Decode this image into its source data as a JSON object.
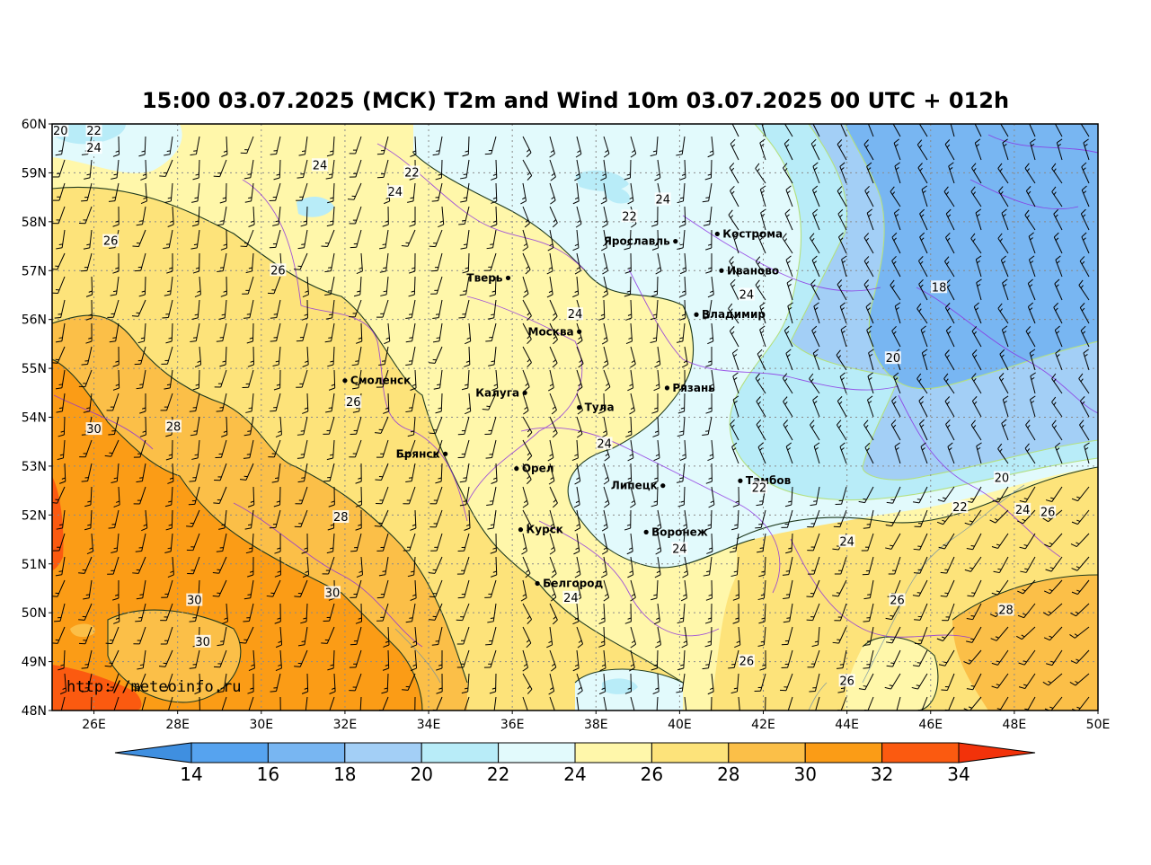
{
  "title": "15:00 03.07.2025 (МСК) T2m and Wind 10m 03.07.2025 00 UTC + 012h",
  "watermark": "http://meteoinfo.ru",
  "lat_labels": [
    "60N",
    "59N",
    "58N",
    "57N",
    "56N",
    "55N",
    "54N",
    "53N",
    "52N",
    "51N",
    "50N",
    "49N",
    "48N"
  ],
  "lon_labels": [
    "26E",
    "28E",
    "30E",
    "32E",
    "34E",
    "36E",
    "38E",
    "40E",
    "42E",
    "44E",
    "46E",
    "48E",
    "50E"
  ],
  "cities": [
    {
      "name": "Ярославль",
      "lon": 39.9,
      "lat": 57.6,
      "side": "left"
    },
    {
      "name": "Кострома",
      "lon": 40.9,
      "lat": 57.75,
      "side": "right"
    },
    {
      "name": "Иваново",
      "lon": 41.0,
      "lat": 57.0,
      "side": "right"
    },
    {
      "name": "Тверь",
      "lon": 35.9,
      "lat": 56.85,
      "side": "left"
    },
    {
      "name": "Владимир",
      "lon": 40.4,
      "lat": 56.1,
      "side": "right"
    },
    {
      "name": "Москва",
      "lon": 37.6,
      "lat": 55.75,
      "side": "left"
    },
    {
      "name": "Смоленск",
      "lon": 32.0,
      "lat": 54.75,
      "side": "right"
    },
    {
      "name": "Калуга",
      "lon": 36.3,
      "lat": 54.5,
      "side": "left"
    },
    {
      "name": "Рязань",
      "lon": 39.7,
      "lat": 54.6,
      "side": "right"
    },
    {
      "name": "Тула",
      "lon": 37.6,
      "lat": 54.2,
      "side": "right"
    },
    {
      "name": "Брянск",
      "lon": 34.4,
      "lat": 53.25,
      "side": "left"
    },
    {
      "name": "Орел",
      "lon": 36.1,
      "lat": 52.95,
      "side": "right"
    },
    {
      "name": "Липецк",
      "lon": 39.6,
      "lat": 52.6,
      "side": "left"
    },
    {
      "name": "Тамбов",
      "lon": 41.45,
      "lat": 52.7,
      "side": "right"
    },
    {
      "name": "Курск",
      "lon": 36.2,
      "lat": 51.7,
      "side": "right"
    },
    {
      "name": "Воронеж",
      "lon": 39.2,
      "lat": 51.65,
      "side": "right"
    },
    {
      "name": "Белгород",
      "lon": 36.6,
      "lat": 50.6,
      "side": "right"
    }
  ],
  "contour_labels": [
    {
      "t": "20",
      "lon": 25.2,
      "lat": 59.85
    },
    {
      "t": "22",
      "lon": 26.0,
      "lat": 59.85
    },
    {
      "t": "24",
      "lon": 26.0,
      "lat": 59.5
    },
    {
      "t": "24",
      "lon": 31.4,
      "lat": 59.15
    },
    {
      "t": "22",
      "lon": 33.6,
      "lat": 59.0
    },
    {
      "t": "24",
      "lon": 33.2,
      "lat": 58.6
    },
    {
      "t": "26",
      "lon": 26.4,
      "lat": 57.6
    },
    {
      "t": "26",
      "lon": 30.4,
      "lat": 57.0
    },
    {
      "t": "24",
      "lon": 39.6,
      "lat": 58.45
    },
    {
      "t": "22",
      "lon": 38.8,
      "lat": 58.1
    },
    {
      "t": "24",
      "lon": 41.6,
      "lat": 56.5
    },
    {
      "t": "24",
      "lon": 37.5,
      "lat": 56.1
    },
    {
      "t": "18",
      "lon": 46.2,
      "lat": 56.65
    },
    {
      "t": "20",
      "lon": 45.1,
      "lat": 55.2
    },
    {
      "t": "26",
      "lon": 32.2,
      "lat": 54.3
    },
    {
      "t": "30",
      "lon": 26.0,
      "lat": 53.75
    },
    {
      "t": "28",
      "lon": 27.9,
      "lat": 53.8
    },
    {
      "t": "24",
      "lon": 38.2,
      "lat": 53.45
    },
    {
      "t": "20",
      "lon": 47.7,
      "lat": 52.75
    },
    {
      "t": "22",
      "lon": 41.9,
      "lat": 52.55
    },
    {
      "t": "22",
      "lon": 46.7,
      "lat": 52.15
    },
    {
      "t": "24",
      "lon": 48.2,
      "lat": 52.1
    },
    {
      "t": "26",
      "lon": 48.8,
      "lat": 52.05
    },
    {
      "t": "28",
      "lon": 31.9,
      "lat": 51.95
    },
    {
      "t": "24",
      "lon": 44.0,
      "lat": 51.45
    },
    {
      "t": "24",
      "lon": 40.0,
      "lat": 51.3
    },
    {
      "t": "30",
      "lon": 31.7,
      "lat": 50.4
    },
    {
      "t": "24",
      "lon": 37.4,
      "lat": 50.3
    },
    {
      "t": "30",
      "lon": 28.4,
      "lat": 50.25
    },
    {
      "t": "26",
      "lon": 45.2,
      "lat": 50.25
    },
    {
      "t": "28",
      "lon": 47.8,
      "lat": 50.05
    },
    {
      "t": "30",
      "lon": 28.6,
      "lat": 49.4
    },
    {
      "t": "26",
      "lon": 41.6,
      "lat": 49.0
    },
    {
      "t": "26",
      "lon": 44.0,
      "lat": 48.6
    }
  ],
  "colorbar": {
    "labels": [
      "14",
      "16",
      "18",
      "20",
      "22",
      "24",
      "26",
      "28",
      "30",
      "32",
      "34"
    ],
    "colors": [
      "#3f8fe0",
      "#56a3ef",
      "#78b6f2",
      "#a3cff6",
      "#b8ecf8",
      "#e2fafc",
      "#fff7aa",
      "#fde37a",
      "#fbbf48",
      "#fb9c16",
      "#fb5a10",
      "#f2320a"
    ]
  }
}
